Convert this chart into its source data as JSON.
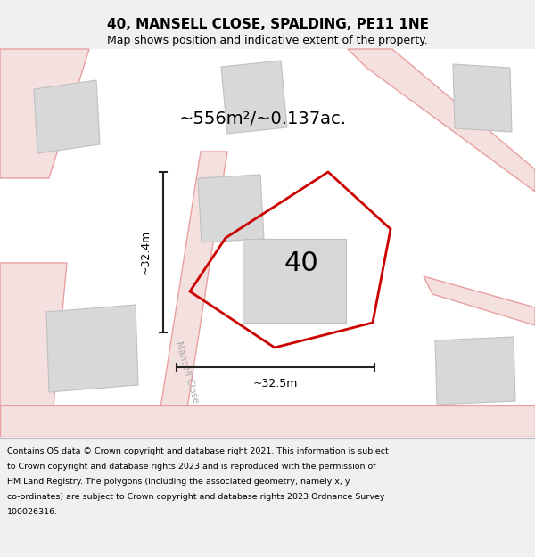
{
  "title_line1": "40, MANSELL CLOSE, SPALDING, PE11 1NE",
  "title_line2": "Map shows position and indicative extent of the property.",
  "area_label": "~556m²/~0.137ac.",
  "label_40": "40",
  "dim_vertical": "~32.4m",
  "dim_horizontal": "~32.5m",
  "road_label": "Mansell Close",
  "footer_lines": [
    "Contains OS data © Crown copyright and database right 2021. This information is subject",
    "to Crown copyright and database rights 2023 and is reproduced with the permission of",
    "HM Land Registry. The polygons (including the associated geometry, namely x, y",
    "co-ordinates) are subject to Crown copyright and database rights 2023 Ordnance Survey",
    "100026316."
  ],
  "bg_color": "#f0f0f0",
  "map_bg": "#ffffff",
  "road_color": "#e8a0a0",
  "road_fill": "#f5e0e0",
  "building_color": "#d8d8d8",
  "building_edge": "#c0c0c0",
  "plot_line_color": "#cc0000",
  "dim_line_color": "#222222",
  "title_bg": "#f0f0f0",
  "footer_bg": "#f0f0f0"
}
